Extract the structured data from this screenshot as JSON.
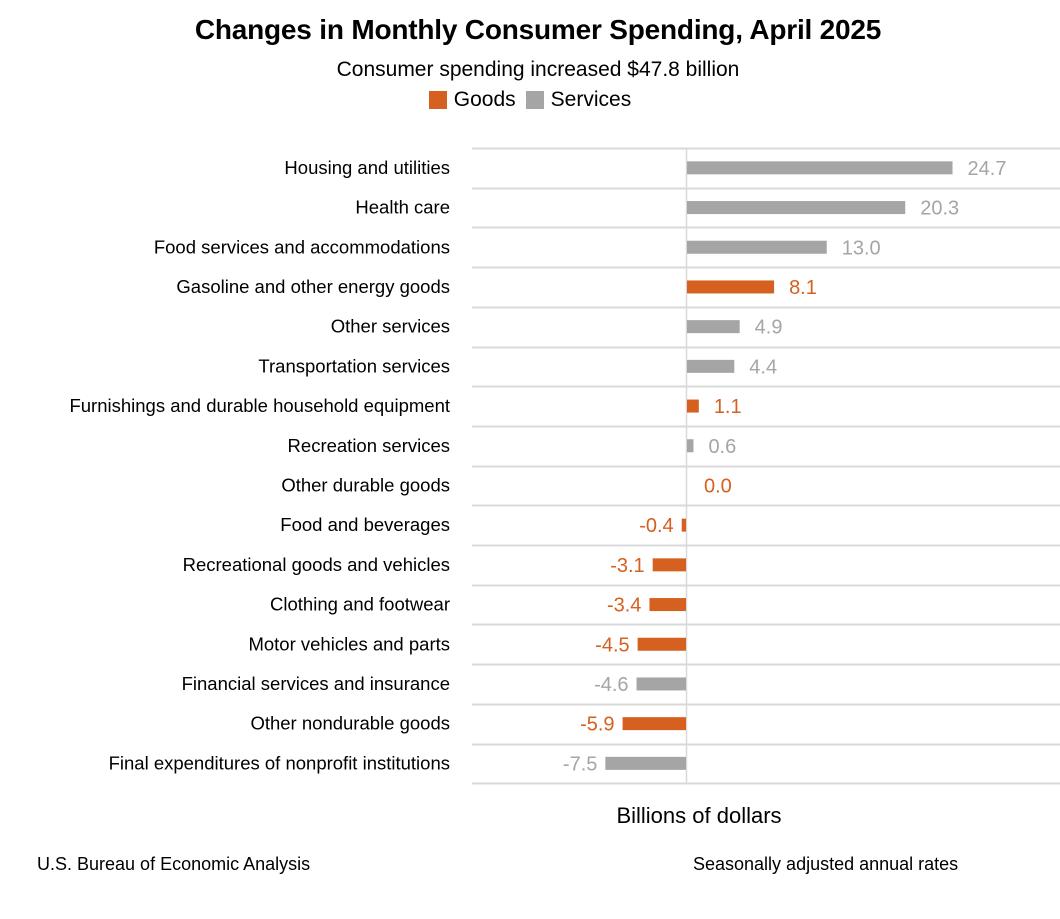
{
  "title": "Changes in Monthly Consumer Spending, April 2025",
  "subtitle": "Consumer spending increased $47.8 billion",
  "footer": {
    "source": "U.S. Bureau of Economic Analysis",
    "note": "Seasonally adjusted annual rates"
  },
  "colors": {
    "goods": "#D5601F",
    "services": "#A5A5A5",
    "gridline": "#D9D9D9",
    "axis": "#D9D9D9"
  },
  "chart_data": {
    "type": "bar",
    "orientation": "horizontal",
    "xlabel": "Billions of dollars",
    "grid": true,
    "legend": [
      {
        "name": "Goods",
        "key": "goods"
      },
      {
        "name": "Services",
        "key": "services"
      }
    ],
    "legend_placement": "top",
    "categories": [
      "Housing and utilities",
      "Health care",
      "Food services and accommodations",
      "Gasoline and other energy goods",
      "Other services",
      "Transportation services",
      "Furnishings and durable household equipment",
      "Recreation services",
      "Other durable goods",
      "Food and beverages",
      "Recreational goods and vehicles",
      "Clothing and footwear",
      "Motor vehicles and parts",
      "Financial services and insurance",
      "Other nondurable goods",
      "Final expenditures of nonprofit institutions"
    ],
    "values": [
      24.7,
      20.3,
      13.0,
      8.1,
      4.9,
      4.4,
      1.1,
      0.6,
      0.0,
      -0.4,
      -3.1,
      -3.4,
      -4.5,
      -4.6,
      -5.9,
      -7.5
    ],
    "value_labels": [
      "24.7",
      "20.3",
      "13.0",
      "8.1",
      "4.9",
      "4.4",
      "1.1",
      "0.6",
      "0.0",
      "-0.4",
      "-3.1",
      "-3.4",
      "-4.5",
      "-4.6",
      "-5.9",
      "-7.5"
    ],
    "types": [
      "services",
      "services",
      "services",
      "goods",
      "services",
      "services",
      "goods",
      "services",
      "goods",
      "goods",
      "goods",
      "goods",
      "goods",
      "services",
      "goods",
      "services"
    ],
    "xlim": [
      -20,
      30
    ]
  }
}
